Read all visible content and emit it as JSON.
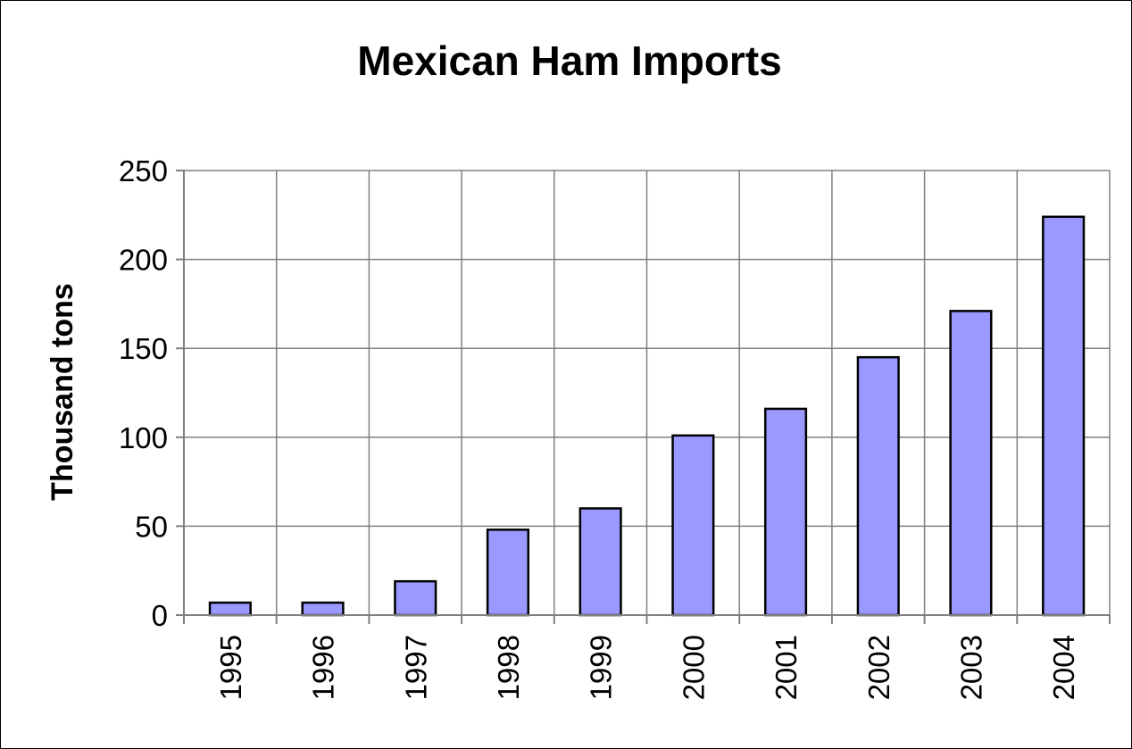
{
  "chart_data": {
    "type": "bar",
    "title": "Mexican Ham Imports",
    "xlabel": "",
    "ylabel": "Thousand tons",
    "categories": [
      "1995",
      "1996",
      "1997",
      "1998",
      "1999",
      "2000",
      "2001",
      "2002",
      "2003",
      "2004"
    ],
    "values": [
      7,
      7,
      19,
      48,
      60,
      101,
      116,
      145,
      171,
      224
    ],
    "ylim": [
      0,
      250
    ],
    "yticks": [
      "0",
      "50",
      "100",
      "150",
      "200",
      "250"
    ],
    "grid": true,
    "legend": "none",
    "colors": {
      "bar_fill": "#9999ff",
      "bar_stroke": "#000000",
      "grid": "#808080",
      "axis": "#808080"
    }
  }
}
